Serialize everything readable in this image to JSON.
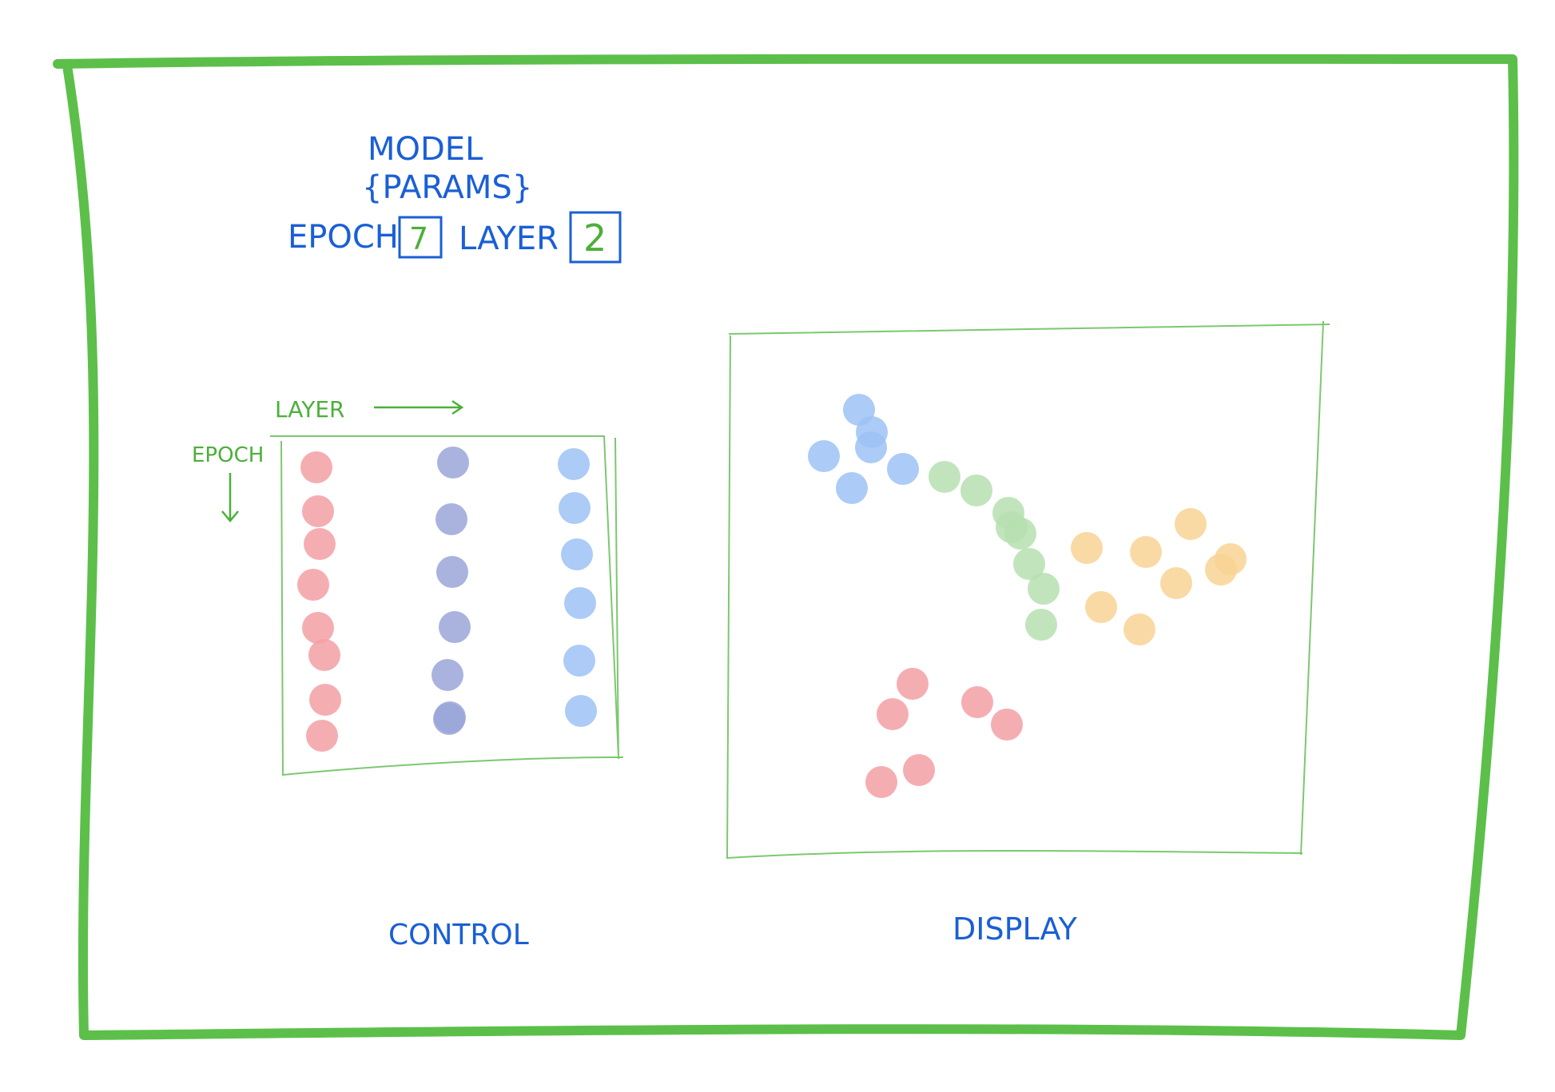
{
  "colors": {
    "frame": "#5cbf4a",
    "ink_blue": "#1a5fd6",
    "ink_green": "#4caf3a",
    "thin_green": "#7cc870",
    "dot_red": "#f2a0a4",
    "dot_navy": "#9aa6d8",
    "dot_blue": "#9ec2f5",
    "dot_green": "#b6dfb0",
    "dot_yellow": "#f8d494"
  },
  "header": {
    "title_line1": "MODEL",
    "title_line2": "{PARAMS}",
    "epoch_label": "EPOCH",
    "epoch_value": "7",
    "layer_label": "LAYER",
    "layer_value": "2"
  },
  "control": {
    "layer_axis_label": "LAYER",
    "epoch_axis_label": "EPOCH",
    "caption": "CONTROL",
    "columns": [
      {
        "color": "dot_red",
        "count": 8
      },
      {
        "color": "dot_navy",
        "count": 7
      },
      {
        "color": "dot_blue",
        "count": 6
      }
    ]
  },
  "display": {
    "caption": "DISPLAY",
    "clusters": [
      {
        "color": "dot_blue",
        "count": 6
      },
      {
        "color": "dot_green",
        "count": 8
      },
      {
        "color": "dot_yellow",
        "count": 8
      },
      {
        "color": "dot_red",
        "count": 6
      }
    ]
  }
}
